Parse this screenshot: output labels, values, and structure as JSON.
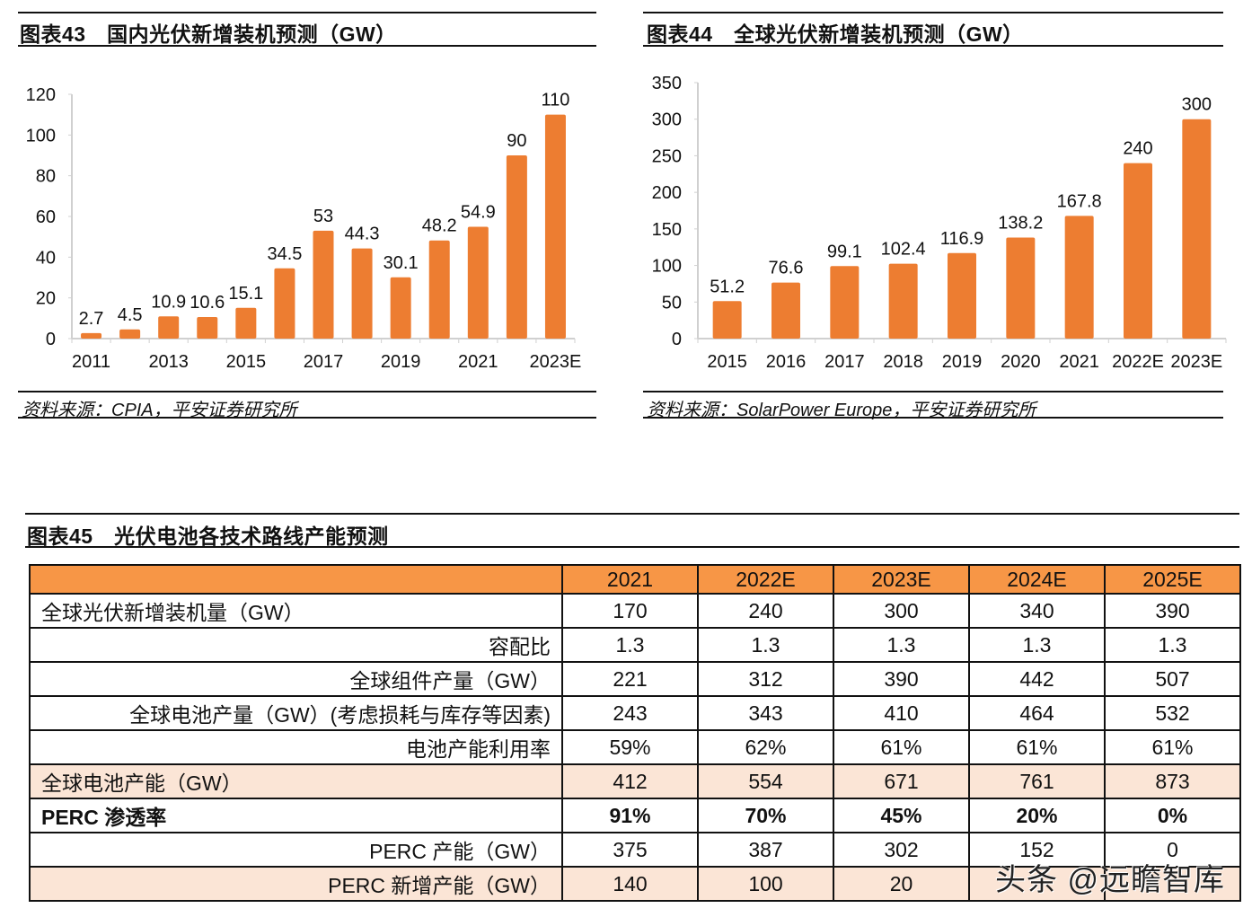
{
  "chart_data": [
    {
      "id": "fig43",
      "type": "bar",
      "title": "图表43　国内光伏新增装机预测（GW）",
      "source": "资料来源：CPIA，平安证券研究所",
      "xlabel": "",
      "ylabel": "",
      "categories": [
        "2011",
        "2012",
        "2013",
        "2014",
        "2015",
        "2016",
        "2017",
        "2018",
        "2019",
        "2020",
        "2021",
        "2022E",
        "2023E"
      ],
      "shown_tick_labels": [
        "2011",
        "",
        "2013",
        "",
        "2015",
        "",
        "2017",
        "",
        "2019",
        "",
        "2021",
        "",
        "2023E"
      ],
      "values": [
        2.7,
        4.5,
        10.9,
        10.6,
        15.1,
        34.5,
        53,
        44.3,
        30.1,
        48.2,
        54.9,
        90,
        110
      ],
      "data_labels": [
        "2.7",
        "4.5",
        "10.9",
        "10.6",
        "15.1",
        "34.5",
        "53",
        "44.3",
        "30.1",
        "48.2",
        "54.9",
        "90",
        "110"
      ],
      "ylim": [
        0,
        120
      ],
      "yticks": [
        0,
        20,
        40,
        60,
        80,
        100,
        120
      ],
      "bar_color": "#ed7d31",
      "grid": false,
      "legend": "none"
    },
    {
      "id": "fig44",
      "type": "bar",
      "title": "图表44　全球光伏新增装机预测（GW）",
      "source": "资料来源：SolarPower Europe，平安证券研究所",
      "xlabel": "",
      "ylabel": "",
      "categories": [
        "2015",
        "2016",
        "2017",
        "2018",
        "2019",
        "2020",
        "2021",
        "2022E",
        "2023E"
      ],
      "shown_tick_labels": [
        "2015",
        "2016",
        "2017",
        "2018",
        "2019",
        "2020",
        "2021",
        "2022E",
        "2023E"
      ],
      "values": [
        51.2,
        76.6,
        99.1,
        102.4,
        116.9,
        138.2,
        167.8,
        240,
        300
      ],
      "data_labels": [
        "51.2",
        "76.6",
        "99.1",
        "102.4",
        "116.9",
        "138.2",
        "167.8",
        "240",
        "300"
      ],
      "ylim": [
        0,
        350
      ],
      "yticks": [
        0,
        50,
        100,
        150,
        200,
        250,
        300,
        350
      ],
      "bar_color": "#ed7d31",
      "grid": false,
      "legend": "none"
    },
    {
      "id": "fig45",
      "type": "table",
      "title": "图表45　光伏电池各技术路线产能预测",
      "columns": [
        "",
        "2021",
        "2022E",
        "2023E",
        "2024E",
        "2025E"
      ],
      "rows": [
        {
          "label": "全球光伏新增装机量（GW）",
          "align": "left",
          "style": "plain",
          "values": [
            "170",
            "240",
            "300",
            "340",
            "390"
          ]
        },
        {
          "label": "容配比",
          "align": "right",
          "style": "plain",
          "values": [
            "1.3",
            "1.3",
            "1.3",
            "1.3",
            "1.3"
          ]
        },
        {
          "label": "全球组件产量（GW）",
          "align": "right",
          "style": "plain",
          "values": [
            "221",
            "312",
            "390",
            "442",
            "507"
          ]
        },
        {
          "label": "全球电池产量（GW）(考虑损耗与库存等因素)",
          "align": "right",
          "style": "plain",
          "values": [
            "243",
            "343",
            "410",
            "464",
            "532"
          ]
        },
        {
          "label": "电池产能利用率",
          "align": "right",
          "style": "plain",
          "values": [
            "59%",
            "62%",
            "61%",
            "61%",
            "61%"
          ]
        },
        {
          "label": "全球电池产能（GW）",
          "align": "left",
          "style": "shaded",
          "values": [
            "412",
            "554",
            "671",
            "761",
            "873"
          ]
        },
        {
          "label": "PERC 渗透率",
          "align": "left",
          "style": "bold",
          "values": [
            "91%",
            "70%",
            "45%",
            "20%",
            "0%"
          ]
        },
        {
          "label": "PERC 产能（GW）",
          "align": "right",
          "style": "plain",
          "values": [
            "375",
            "387",
            "302",
            "152",
            "0"
          ]
        },
        {
          "label": "PERC 新增产能（GW）",
          "align": "right",
          "style": "shaded",
          "values": [
            "140",
            "100",
            "20",
            "",
            ""
          ]
        }
      ],
      "header_color": "#f79646",
      "shade_color": "#fbe5d6"
    }
  ],
  "watermark": "头条 @远瞻智库"
}
